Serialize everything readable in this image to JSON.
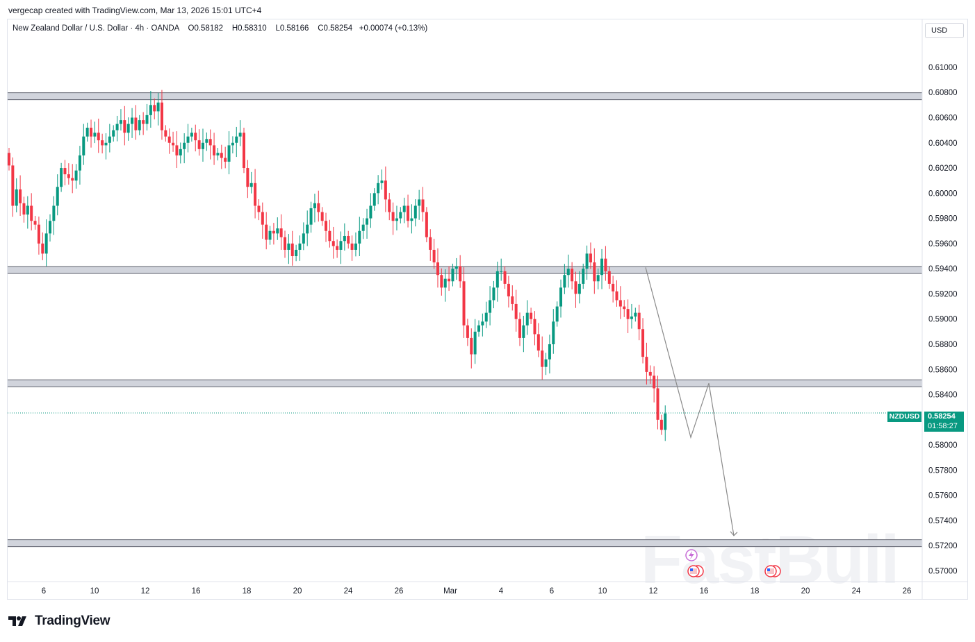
{
  "header": {
    "caption": "vergecap created with TradingView.com, Mar 13, 2026 15:01 UTC+4"
  },
  "symbol_bar": {
    "name": "New Zealand Dollar / U.S. Dollar",
    "interval": "4h",
    "broker": "OANDA",
    "open": "O0.58182",
    "high": "H0.58310",
    "low": "L0.58166",
    "close": "C0.58254",
    "change": "+0.00074 (+0.13%)"
  },
  "currency_button": "USD",
  "last_price": {
    "symbol": "NZDUSD",
    "price": "0.58254",
    "countdown": "01:58:27",
    "color": "#089981"
  },
  "watermark": "FastBull",
  "footer": {
    "logo_text": "TradingView"
  },
  "colors": {
    "up": "#089981",
    "down": "#f23645",
    "zone": "#c9cbd0",
    "projection": "#8a8a8a"
  },
  "chart_data": {
    "type": "candlestick",
    "symbol": "NZDUSD",
    "ylim": [
      0.5692,
      0.6138
    ],
    "y_ticks": [
      "0.61000",
      "0.60800",
      "0.60600",
      "0.60400",
      "0.60200",
      "0.60000",
      "0.59800",
      "0.59600",
      "0.59400",
      "0.59200",
      "0.59000",
      "0.58800",
      "0.58600",
      "0.58400",
      "0.58000",
      "0.57800",
      "0.57600",
      "0.57400",
      "0.57200",
      "0.57000"
    ],
    "x_ticks": [
      "6",
      "10",
      "12",
      "16",
      "18",
      "20",
      "24",
      "26",
      "Mar",
      "4",
      "6",
      "10",
      "12",
      "16",
      "18",
      "20",
      "24",
      "26"
    ],
    "zones": [
      0.6077,
      0.5939,
      0.5849,
      0.5722
    ],
    "closes": [
      0.6022,
      0.599,
      0.6003,
      0.5992,
      0.5983,
      0.599,
      0.5978,
      0.5975,
      0.596,
      0.5952,
      0.5968,
      0.5978,
      0.599,
      0.6005,
      0.602,
      0.6015,
      0.6012,
      0.601,
      0.6018,
      0.603,
      0.6045,
      0.6052,
      0.6045,
      0.6048,
      0.6042,
      0.6038,
      0.604,
      0.6045,
      0.605,
      0.6055,
      0.6058,
      0.6048,
      0.6055,
      0.606,
      0.605,
      0.6058,
      0.6055,
      0.6062,
      0.607,
      0.6065,
      0.6072,
      0.605,
      0.6045,
      0.604,
      0.6038,
      0.603,
      0.6035,
      0.604,
      0.6045,
      0.6048,
      0.6042,
      0.6035,
      0.604,
      0.6043,
      0.6038,
      0.603,
      0.6032,
      0.6028,
      0.6025,
      0.6038,
      0.604,
      0.6045,
      0.6048,
      0.602,
      0.6005,
      0.6008,
      0.599,
      0.5985,
      0.5975,
      0.5963,
      0.597,
      0.5968,
      0.5972,
      0.5965,
      0.5955,
      0.596,
      0.595,
      0.5955,
      0.596,
      0.5968,
      0.5975,
      0.5988,
      0.5992,
      0.5985,
      0.5978,
      0.597,
      0.5962,
      0.5958,
      0.5955,
      0.5962,
      0.5966,
      0.596,
      0.5955,
      0.596,
      0.597,
      0.5975,
      0.598,
      0.599,
      0.6,
      0.6008,
      0.601,
      0.5995,
      0.5985,
      0.5978,
      0.598,
      0.5985,
      0.599,
      0.5978,
      0.598,
      0.599,
      0.5995,
      0.5985,
      0.5965,
      0.5955,
      0.5945,
      0.5935,
      0.5925,
      0.5932,
      0.593,
      0.594,
      0.5942,
      0.593,
      0.5895,
      0.5885,
      0.5872,
      0.589,
      0.5895,
      0.5898,
      0.5905,
      0.5915,
      0.5925,
      0.5938,
      0.5938,
      0.5928,
      0.5918,
      0.5912,
      0.59,
      0.5885,
      0.5895,
      0.5905,
      0.59,
      0.5888,
      0.5875,
      0.5862,
      0.5868,
      0.588,
      0.5898,
      0.591,
      0.5925,
      0.5935,
      0.594,
      0.593,
      0.592,
      0.5928,
      0.594,
      0.5952,
      0.5945,
      0.593,
      0.5935,
      0.5948,
      0.5938,
      0.5928,
      0.5922,
      0.5915,
      0.591,
      0.5908,
      0.59,
      0.5902,
      0.5905,
      0.5892,
      0.587,
      0.5858,
      0.5855,
      0.5845,
      0.582,
      0.5812,
      0.5825
    ]
  }
}
